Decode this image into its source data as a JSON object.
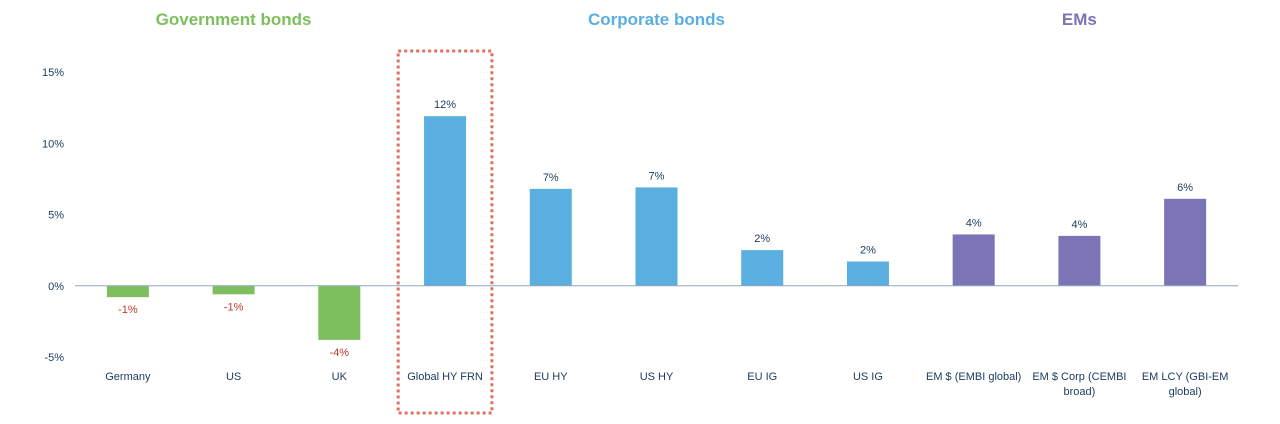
{
  "chart_data": {
    "type": "bar",
    "ylim": [
      -5,
      15
    ],
    "yticks": [
      15,
      10,
      5,
      0,
      -5
    ],
    "ytick_labels": [
      "15%",
      "10%",
      "5%",
      "0%",
      "-5%"
    ],
    "groups": [
      {
        "label": "Government bonds",
        "color": "#7dbf5e",
        "start": 0,
        "end": 2
      },
      {
        "label": "Corporate bonds",
        "color": "#5aaee0",
        "start": 3,
        "end": 7
      },
      {
        "label": "EMs",
        "color": "#7b74b6",
        "start": 8,
        "end": 10
      }
    ],
    "categories": [
      [
        "Germany"
      ],
      [
        "US"
      ],
      [
        "UK"
      ],
      [
        "Global HY FRN"
      ],
      [
        "EU HY"
      ],
      [
        "US HY"
      ],
      [
        "EU IG"
      ],
      [
        "US IG"
      ],
      [
        "EM $ (EMBI global)"
      ],
      [
        "EM $ Corp (CEMBI",
        "broad)"
      ],
      [
        "EM LCY (GBI-EM",
        "global)"
      ]
    ],
    "values": [
      -0.8,
      -0.6,
      -3.8,
      11.9,
      6.8,
      6.9,
      2.5,
      1.7,
      3.6,
      3.5,
      6.1
    ],
    "data_labels": [
      "-1%",
      "-1%",
      "-4%",
      "12%",
      "7%",
      "7%",
      "2%",
      "2%",
      "4%",
      "4%",
      "6%"
    ],
    "bar_colors": [
      "#7dbf5e",
      "#7dbf5e",
      "#7dbf5e",
      "#5aaee0",
      "#5aaee0",
      "#5aaee0",
      "#5aaee0",
      "#5aaee0",
      "#7b74b6",
      "#7b74b6",
      "#7b74b6"
    ],
    "negative_label_color": "#c0392b",
    "positive_label_color": "#1a3a5c",
    "highlight_index": 3,
    "highlight_color": "#e07060",
    "grid": false
  }
}
